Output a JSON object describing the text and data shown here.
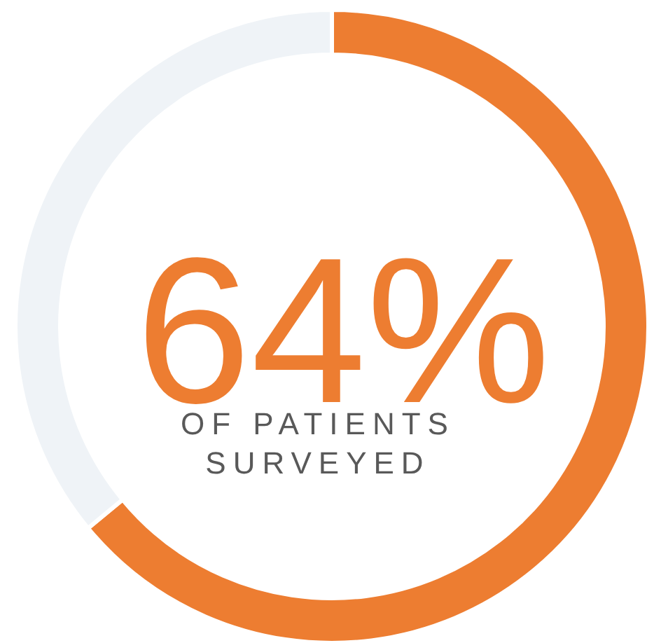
{
  "chart_data": {
    "type": "donut",
    "categories": [
      null,
      null
    ],
    "values": [
      64,
      36
    ],
    "colors": [
      "#ed7d31",
      "#eff3f7"
    ],
    "value_labels": [
      "64%",
      null
    ],
    "annotations": [
      "OF PATIENTS SURVEYED"
    ]
  }
}
